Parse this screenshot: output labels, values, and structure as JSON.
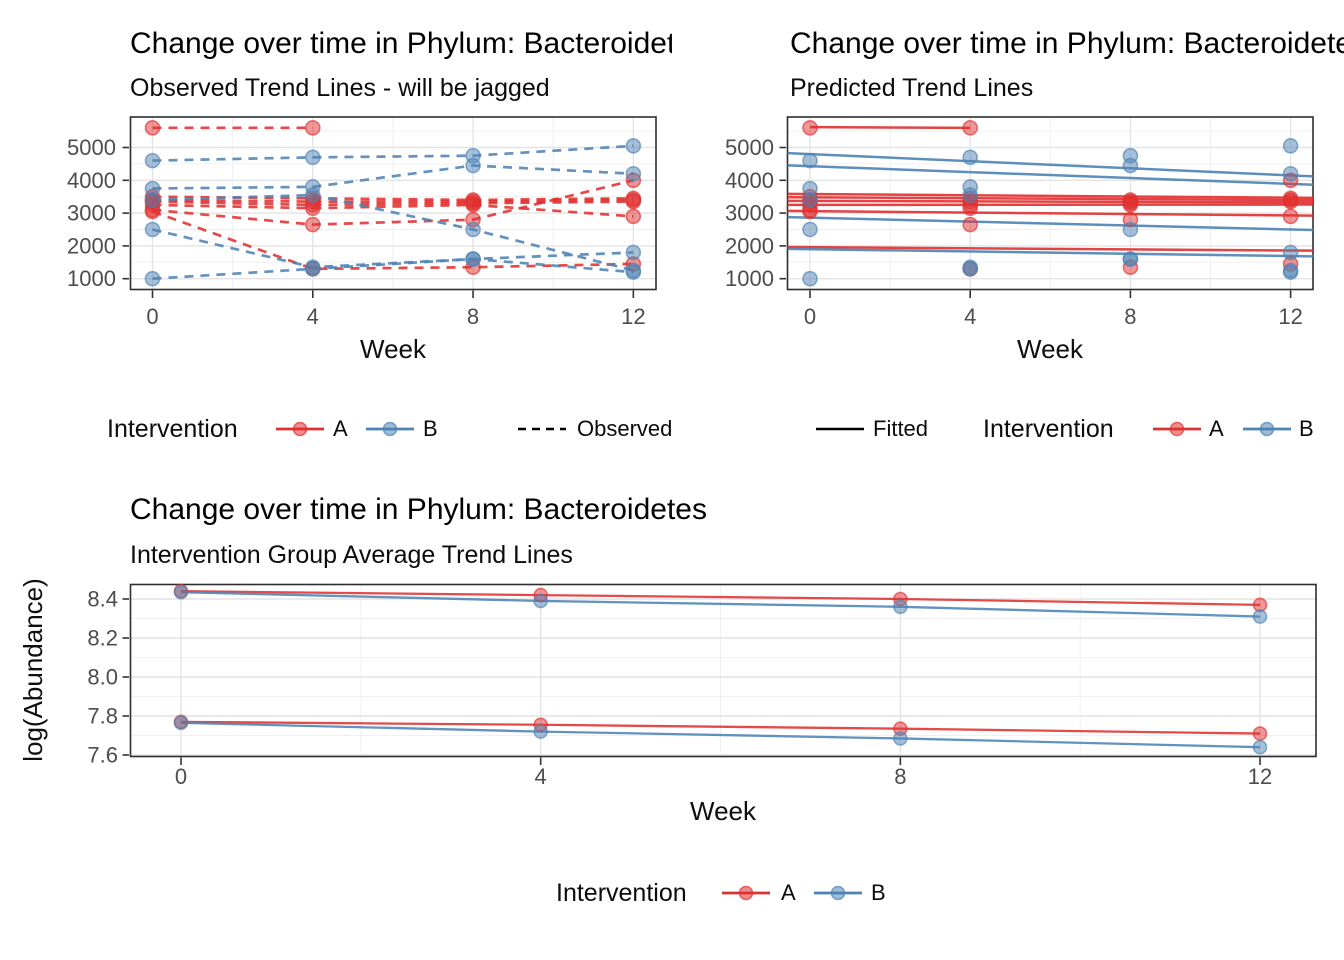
{
  "colors": {
    "intervention_a": "#e12f2f",
    "intervention_b": "#4d82b4",
    "line_key": "#000000",
    "grid_major": "#e4e4e4",
    "grid_minor": "#f0f0f0",
    "panel_border": "#2e2e2e",
    "tick_text": "#4d4d4d",
    "title_text": "#000000"
  },
  "chart_data": [
    {
      "type": "line",
      "title": "Change over time in Phylum: Bacteroidetes",
      "subtitle": "Observed Trend Lines - will be jagged",
      "xlabel": "Week",
      "line_style": "dashed",
      "x": [
        0,
        4,
        8,
        12
      ],
      "xtick_labels": [
        "0",
        "4",
        "8",
        "12"
      ],
      "yticks": [
        1000,
        2000,
        3000,
        4000,
        5000
      ],
      "ytick_labels": [
        "1000",
        "2000",
        "3000",
        "4000",
        "5000"
      ],
      "xlim": [
        -0.56,
        12.56
      ],
      "ylim": [
        670,
        5930
      ],
      "grid": "on",
      "legend": {
        "title": "Intervention",
        "a": "A",
        "b": "B",
        "linetype_label": "Observed"
      },
      "series": [
        {
          "id": "A1",
          "group": "A",
          "values": [
            5600,
            5600,
            null,
            null
          ]
        },
        {
          "id": "A2",
          "group": "A",
          "values": [
            3500,
            3450,
            3400,
            3450
          ]
        },
        {
          "id": "A3",
          "group": "A",
          "values": [
            3400,
            3350,
            3350,
            3400
          ]
        },
        {
          "id": "A4",
          "group": "A",
          "values": [
            3350,
            3250,
            3300,
            3350
          ]
        },
        {
          "id": "A5",
          "group": "A",
          "values": [
            3250,
            3150,
            3250,
            2900
          ]
        },
        {
          "id": "A6",
          "group": "A",
          "values": [
            3100,
            2650,
            2800,
            4000
          ]
        },
        {
          "id": "A7",
          "group": "A",
          "values": [
            3050,
            1300,
            1350,
            1450
          ]
        },
        {
          "id": "B1",
          "group": "B",
          "values": [
            4600,
            4700,
            4750,
            5050
          ]
        },
        {
          "id": "B2",
          "group": "B",
          "values": [
            3750,
            3800,
            4450,
            4200
          ]
        },
        {
          "id": "B3",
          "group": "B",
          "values": [
            3400,
            3550,
            2500,
            1250
          ]
        },
        {
          "id": "B4",
          "group": "B",
          "values": [
            2500,
            1350,
            1600,
            1800
          ]
        },
        {
          "id": "B5",
          "group": "B",
          "values": [
            1000,
            1300,
            1600,
            1200
          ]
        }
      ]
    },
    {
      "type": "line",
      "title": "Change over time in Phylum: Bacteroidetes",
      "subtitle": "Predicted Trend Lines",
      "xlabel": "Week",
      "line_style": "solid",
      "x": [
        0,
        4,
        8,
        12
      ],
      "xtick_labels": [
        "0",
        "4",
        "8",
        "12"
      ],
      "yticks": [
        1000,
        2000,
        3000,
        4000,
        5000
      ],
      "ytick_labels": [
        "1000",
        "2000",
        "3000",
        "4000",
        "5000"
      ],
      "xlim": [
        -0.56,
        12.56
      ],
      "ylim": [
        670,
        5930
      ],
      "grid": "on",
      "legend": {
        "linetype_label": "Fitted",
        "title": "Intervention",
        "a": "A",
        "b": "B"
      },
      "fitted_lines": [
        {
          "group": "A",
          "weeks": [
            0,
            4
          ],
          "y": [
            5620,
            5560
          ]
        },
        {
          "group": "A",
          "y": [
            3580,
            3470
          ]
        },
        {
          "group": "A",
          "y": [
            3480,
            3400
          ]
        },
        {
          "group": "A",
          "y": [
            3370,
            3330
          ]
        },
        {
          "group": "A",
          "y": [
            3250,
            3260
          ]
        },
        {
          "group": "A",
          "y": [
            3060,
            2930
          ]
        },
        {
          "group": "A",
          "y": [
            1960,
            1860
          ]
        },
        {
          "group": "B",
          "y": [
            4800,
            4150
          ]
        },
        {
          "group": "B",
          "y": [
            4430,
            3890
          ]
        },
        {
          "group": "B",
          "y": [
            2860,
            2500
          ]
        },
        {
          "group": "B",
          "y": [
            1900,
            1690
          ]
        }
      ],
      "points": [
        {
          "id": "A1",
          "group": "A",
          "values": [
            5600,
            5600,
            null,
            null
          ]
        },
        {
          "id": "A2",
          "group": "A",
          "values": [
            3500,
            3450,
            3400,
            3450
          ]
        },
        {
          "id": "A3",
          "group": "A",
          "values": [
            3400,
            3350,
            3350,
            3400
          ]
        },
        {
          "id": "A4",
          "group": "A",
          "values": [
            3350,
            3250,
            3300,
            3350
          ]
        },
        {
          "id": "A5",
          "group": "A",
          "values": [
            3250,
            3150,
            3250,
            2900
          ]
        },
        {
          "id": "A6",
          "group": "A",
          "values": [
            3100,
            2650,
            2800,
            4000
          ]
        },
        {
          "id": "A7",
          "group": "A",
          "values": [
            3050,
            1300,
            1350,
            1450
          ]
        },
        {
          "id": "B1",
          "group": "B",
          "values": [
            4600,
            4700,
            4750,
            5050
          ]
        },
        {
          "id": "B2",
          "group": "B",
          "values": [
            3750,
            3800,
            4450,
            4200
          ]
        },
        {
          "id": "B3",
          "group": "B",
          "values": [
            3400,
            3550,
            2500,
            1250
          ]
        },
        {
          "id": "B4",
          "group": "B",
          "values": [
            2500,
            1350,
            1600,
            1800
          ]
        },
        {
          "id": "B5",
          "group": "B",
          "values": [
            1000,
            1300,
            1600,
            1200
          ]
        }
      ]
    },
    {
      "type": "line",
      "title": "Change over time in Phylum: Bacteroidetes",
      "subtitle": "Intervention Group Average Trend Lines",
      "xlabel": "Week",
      "ylabel": "log(Abundance)",
      "line_style": "solid",
      "x": [
        0,
        4,
        8,
        12
      ],
      "xtick_labels": [
        "0",
        "4",
        "8",
        "12"
      ],
      "yticks": [
        7.6,
        7.8,
        8.0,
        8.2,
        8.4
      ],
      "ytick_labels": [
        "7.6",
        "7.8",
        "8.0",
        "8.2",
        "8.4"
      ],
      "xlim": [
        -0.56,
        12.62
      ],
      "ylim": [
        7.59,
        8.47
      ],
      "grid": "on",
      "legend": {
        "title": "Intervention",
        "a": "A",
        "b": "B"
      },
      "series": [
        {
          "id": "A-upper",
          "group": "A",
          "values": [
            8.44,
            8.42,
            8.4,
            8.37
          ]
        },
        {
          "id": "B-upper",
          "group": "B",
          "values": [
            8.435,
            8.39,
            8.36,
            8.31
          ]
        },
        {
          "id": "A-lower",
          "group": "A",
          "values": [
            7.77,
            7.755,
            7.735,
            7.71
          ]
        },
        {
          "id": "B-lower",
          "group": "B",
          "values": [
            7.765,
            7.72,
            7.685,
            7.64
          ]
        }
      ]
    }
  ]
}
